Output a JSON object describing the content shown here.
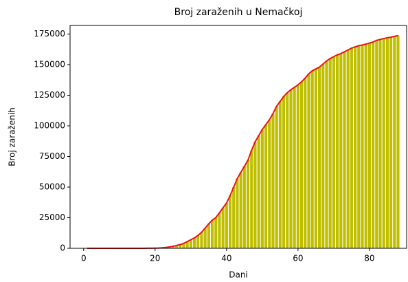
{
  "chart_data": {
    "type": "bar",
    "title": "Broj zaraženih u Nemačkoj",
    "xlabel": "Dani",
    "ylabel": "Broj zaraženih",
    "x": [
      1,
      2,
      3,
      4,
      5,
      6,
      7,
      8,
      9,
      10,
      11,
      12,
      13,
      14,
      15,
      16,
      17,
      18,
      19,
      20,
      21,
      22,
      23,
      24,
      25,
      26,
      27,
      28,
      29,
      30,
      31,
      32,
      33,
      34,
      35,
      36,
      37,
      38,
      39,
      40,
      41,
      42,
      43,
      44,
      45,
      46,
      47,
      48,
      49,
      50,
      51,
      52,
      53,
      54,
      55,
      56,
      57,
      58,
      59,
      60,
      61,
      62,
      63,
      64,
      65,
      66,
      67,
      68,
      69,
      70,
      71,
      72,
      73,
      74,
      75,
      76,
      77,
      78,
      79,
      80,
      81,
      82,
      83,
      84,
      85,
      86,
      87,
      88
    ],
    "values": [
      16,
      16,
      16,
      16,
      16,
      16,
      16,
      16,
      16,
      16,
      16,
      16,
      16,
      16,
      16,
      18,
      26,
      48,
      79,
      130,
      200,
      400,
      700,
      1100,
      1600,
      2300,
      3000,
      4000,
      5500,
      7000,
      8500,
      10500,
      13000,
      16500,
      20000,
      23000,
      25000,
      29000,
      33000,
      37000,
      43000,
      50000,
      57000,
      62000,
      67000,
      72000,
      80000,
      87000,
      92000,
      97000,
      101000,
      105000,
      110000,
      116000,
      120000,
      124000,
      127000,
      129500,
      131500,
      133500,
      136000,
      139000,
      142500,
      145000,
      146500,
      148000,
      150500,
      153000,
      155000,
      156500,
      158000,
      159000,
      160500,
      162000,
      163500,
      164500,
      165500,
      166000,
      166800,
      167600,
      168500,
      169800,
      170600,
      171300,
      172000,
      172400,
      173100,
      173800
    ],
    "color": "#bfbf00",
    "line_color": "#ee1111",
    "xlim": [
      -3.8,
      90.4
    ],
    "xticks": [
      0,
      20,
      40,
      60,
      80
    ],
    "ylim": [
      0,
      182000
    ],
    "yticks": [
      0,
      25000,
      50000,
      75000,
      100000,
      125000,
      150000,
      175000
    ]
  }
}
